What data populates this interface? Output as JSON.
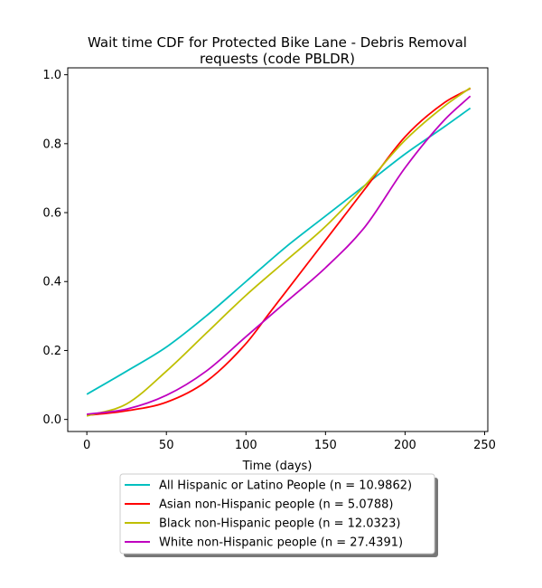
{
  "chart_data": {
    "type": "line",
    "title": "Wait time CDF for Protected Bike Lane - Debris Removal requests (code PBLDR)",
    "title_lines": [
      "Wait time CDF for Protected Bike Lane - Debris Removal",
      "requests (code PBLDR)"
    ],
    "xlabel": "Time (days)",
    "ylabel": "",
    "xlim": [
      -12,
      252
    ],
    "ylim": [
      -0.035,
      1.02
    ],
    "xticks": [
      0,
      50,
      100,
      150,
      200,
      250
    ],
    "yticks": [
      0.0,
      0.2,
      0.4,
      0.6,
      0.8,
      1.0
    ],
    "xtick_labels": [
      "0",
      "50",
      "100",
      "150",
      "200",
      "250"
    ],
    "ytick_labels": [
      "0.0",
      "0.2",
      "0.4",
      "0.6",
      "0.8",
      "1.0"
    ],
    "grid": false,
    "legend_position": "below",
    "series": [
      {
        "name": "All Hispanic or Latino People (n = 10.9862)",
        "color": "#00bfbf",
        "x": [
          0,
          25,
          50,
          75,
          100,
          125,
          150,
          175,
          200,
          225,
          241
        ],
        "y": [
          0.073,
          0.14,
          0.21,
          0.3,
          0.4,
          0.5,
          0.59,
          0.68,
          0.77,
          0.85,
          0.903
        ]
      },
      {
        "name": "Asian non-Hispanic people (n = 5.0788)",
        "color": "#ff0000",
        "x": [
          0,
          25,
          50,
          75,
          100,
          115,
          125,
          150,
          175,
          200,
          225,
          241
        ],
        "y": [
          0.012,
          0.025,
          0.05,
          0.11,
          0.22,
          0.31,
          0.37,
          0.52,
          0.67,
          0.82,
          0.92,
          0.96
        ]
      },
      {
        "name": "Black non-Hispanic people (n = 12.0323)",
        "color": "#bfbf00",
        "x": [
          0,
          25,
          50,
          75,
          100,
          125,
          150,
          175,
          200,
          225,
          241
        ],
        "y": [
          0.01,
          0.045,
          0.14,
          0.25,
          0.36,
          0.46,
          0.56,
          0.68,
          0.81,
          0.91,
          0.962
        ]
      },
      {
        "name": "White non-Hispanic people (n = 27.4391)",
        "color": "#bf00bf",
        "x": [
          0,
          25,
          50,
          75,
          100,
          125,
          150,
          175,
          200,
          225,
          241
        ],
        "y": [
          0.015,
          0.03,
          0.07,
          0.14,
          0.24,
          0.34,
          0.44,
          0.56,
          0.73,
          0.87,
          0.938
        ]
      }
    ]
  }
}
